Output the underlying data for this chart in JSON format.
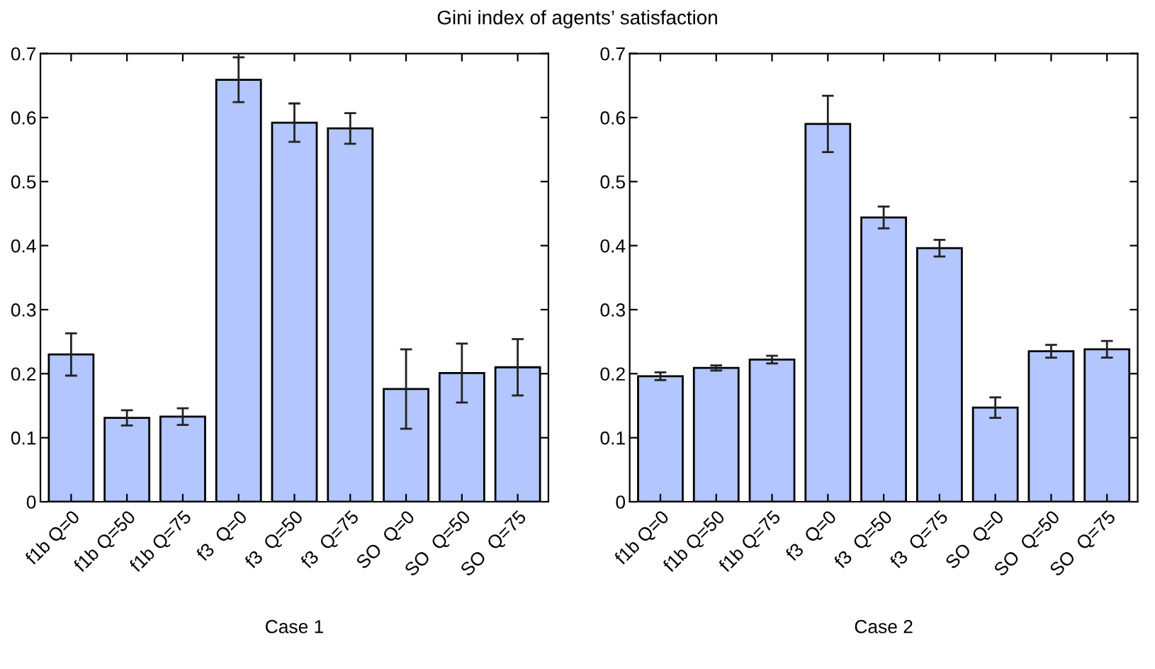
{
  "chart_data": [
    {
      "type": "bar",
      "title": "Gini index of agents’ satisfaction",
      "xlabel": "Case 1",
      "categories": [
        "f1b Q=0",
        "f1b Q=50",
        "f1b Q=75",
        "f3  Q=0",
        "f3  Q=50",
        "f3  Q=75",
        "SO  Q=0",
        "SO  Q=50",
        "SO  Q=75"
      ],
      "values": [
        0.23,
        0.131,
        0.133,
        0.659,
        0.592,
        0.583,
        0.176,
        0.201,
        0.21
      ],
      "errors": [
        0.033,
        0.012,
        0.013,
        0.035,
        0.03,
        0.024,
        0.062,
        0.046,
        0.044
      ],
      "color": "#b3c6ff",
      "ylim": [
        0,
        0.7
      ],
      "yticks": [
        0,
        0.1,
        0.2,
        0.3,
        0.4,
        0.5,
        0.6,
        0.7
      ],
      "grid": false
    },
    {
      "type": "bar",
      "xlabel": "Case 2",
      "categories": [
        "f1b Q=0",
        "f1b Q=50",
        "f1b Q=75",
        "f3  Q=0",
        "f3  Q=50",
        "f3  Q=75",
        "SO  Q=0",
        "SO  Q=50",
        "SO  Q=75"
      ],
      "values": [
        0.196,
        0.209,
        0.222,
        0.59,
        0.444,
        0.396,
        0.147,
        0.235,
        0.238
      ],
      "errors": [
        0.006,
        0.004,
        0.006,
        0.044,
        0.017,
        0.013,
        0.016,
        0.01,
        0.013
      ],
      "color": "#b3c6ff",
      "ylim": [
        0,
        0.7
      ],
      "yticks": [
        0,
        0.1,
        0.2,
        0.3,
        0.4,
        0.5,
        0.6,
        0.7
      ],
      "grid": false
    }
  ]
}
